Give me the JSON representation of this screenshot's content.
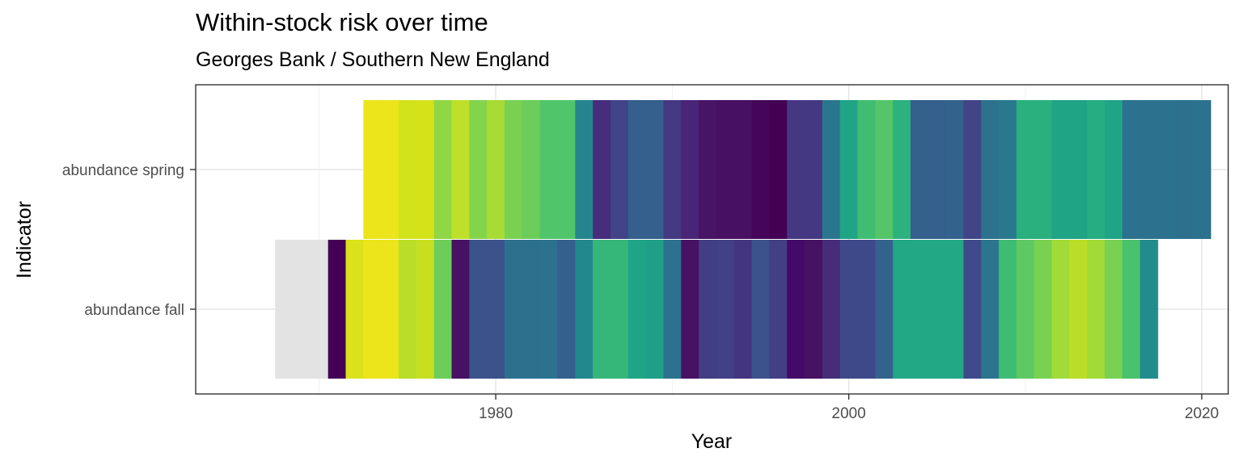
{
  "chart_data": {
    "type": "heatmap",
    "title": "Within-stock risk over time",
    "subtitle": "Georges Bank / Southern New England",
    "xlabel": "Year",
    "ylabel": "Indicator",
    "xlim": [
      1963,
      2021.5
    ],
    "x_ticks": [
      1980,
      2000,
      2020
    ],
    "x_tick_labels": [
      "1980",
      "2000",
      "2020"
    ],
    "grid": true,
    "legend": "none",
    "missing_color": "#e3e3e3",
    "indicators": [
      {
        "name": "abundance fall",
        "start_year": 1968,
        "colors": [
          "#e3e3e3",
          "#e3e3e3",
          "#e3e3e3",
          "#440154",
          "#d9e21a",
          "#ece51b",
          "#ece51b",
          "#b8de29",
          "#c6e021",
          "#6ccd5a",
          "#471164",
          "#3b528b",
          "#3b528b",
          "#2d708e",
          "#2d708e",
          "#2c728e",
          "#355f8d",
          "#23888e",
          "#35b779",
          "#35b779",
          "#20a486",
          "#1f9f88",
          "#2c728e",
          "#471164",
          "#433d84",
          "#424086",
          "#453581",
          "#3b528b",
          "#423f85",
          "#440a68",
          "#471164",
          "#472c7a",
          "#3e4989",
          "#3e4989",
          "#33638d",
          "#22a884",
          "#22a884",
          "#22a884",
          "#22a884",
          "#3e4a89",
          "#2b758e",
          "#3fbc73",
          "#5ec962",
          "#79d151",
          "#a2da37",
          "#bade28",
          "#a2da37",
          "#79d151",
          "#4ac16d",
          "#228c8d"
        ]
      },
      {
        "name": "abundance spring",
        "start_year": 1973,
        "colors": [
          "#ece51b",
          "#ece51b",
          "#d2e21b",
          "#d5e21a",
          "#8fd744",
          "#bde02a",
          "#84d44b",
          "#a8db34",
          "#7ad151",
          "#6ccd5a",
          "#51c56a",
          "#51c56a",
          "#25858e",
          "#472d7b",
          "#414487",
          "#355f8d",
          "#355f8d",
          "#443983",
          "#482576",
          "#471466",
          "#471063",
          "#471063",
          "#450559",
          "#440154",
          "#453882",
          "#453882",
          "#2a768e",
          "#20a486",
          "#40bd72",
          "#54c568",
          "#2db27d",
          "#355f8d",
          "#355f8d",
          "#33638d",
          "#414487",
          "#2c728e",
          "#2a788e",
          "#2ab07f",
          "#2ab07f",
          "#20a486",
          "#20a486",
          "#26ad81",
          "#20a486",
          "#2c728e",
          "#2c728e",
          "#2c728e",
          "#2d708e",
          "#2c728e"
        ]
      }
    ]
  }
}
